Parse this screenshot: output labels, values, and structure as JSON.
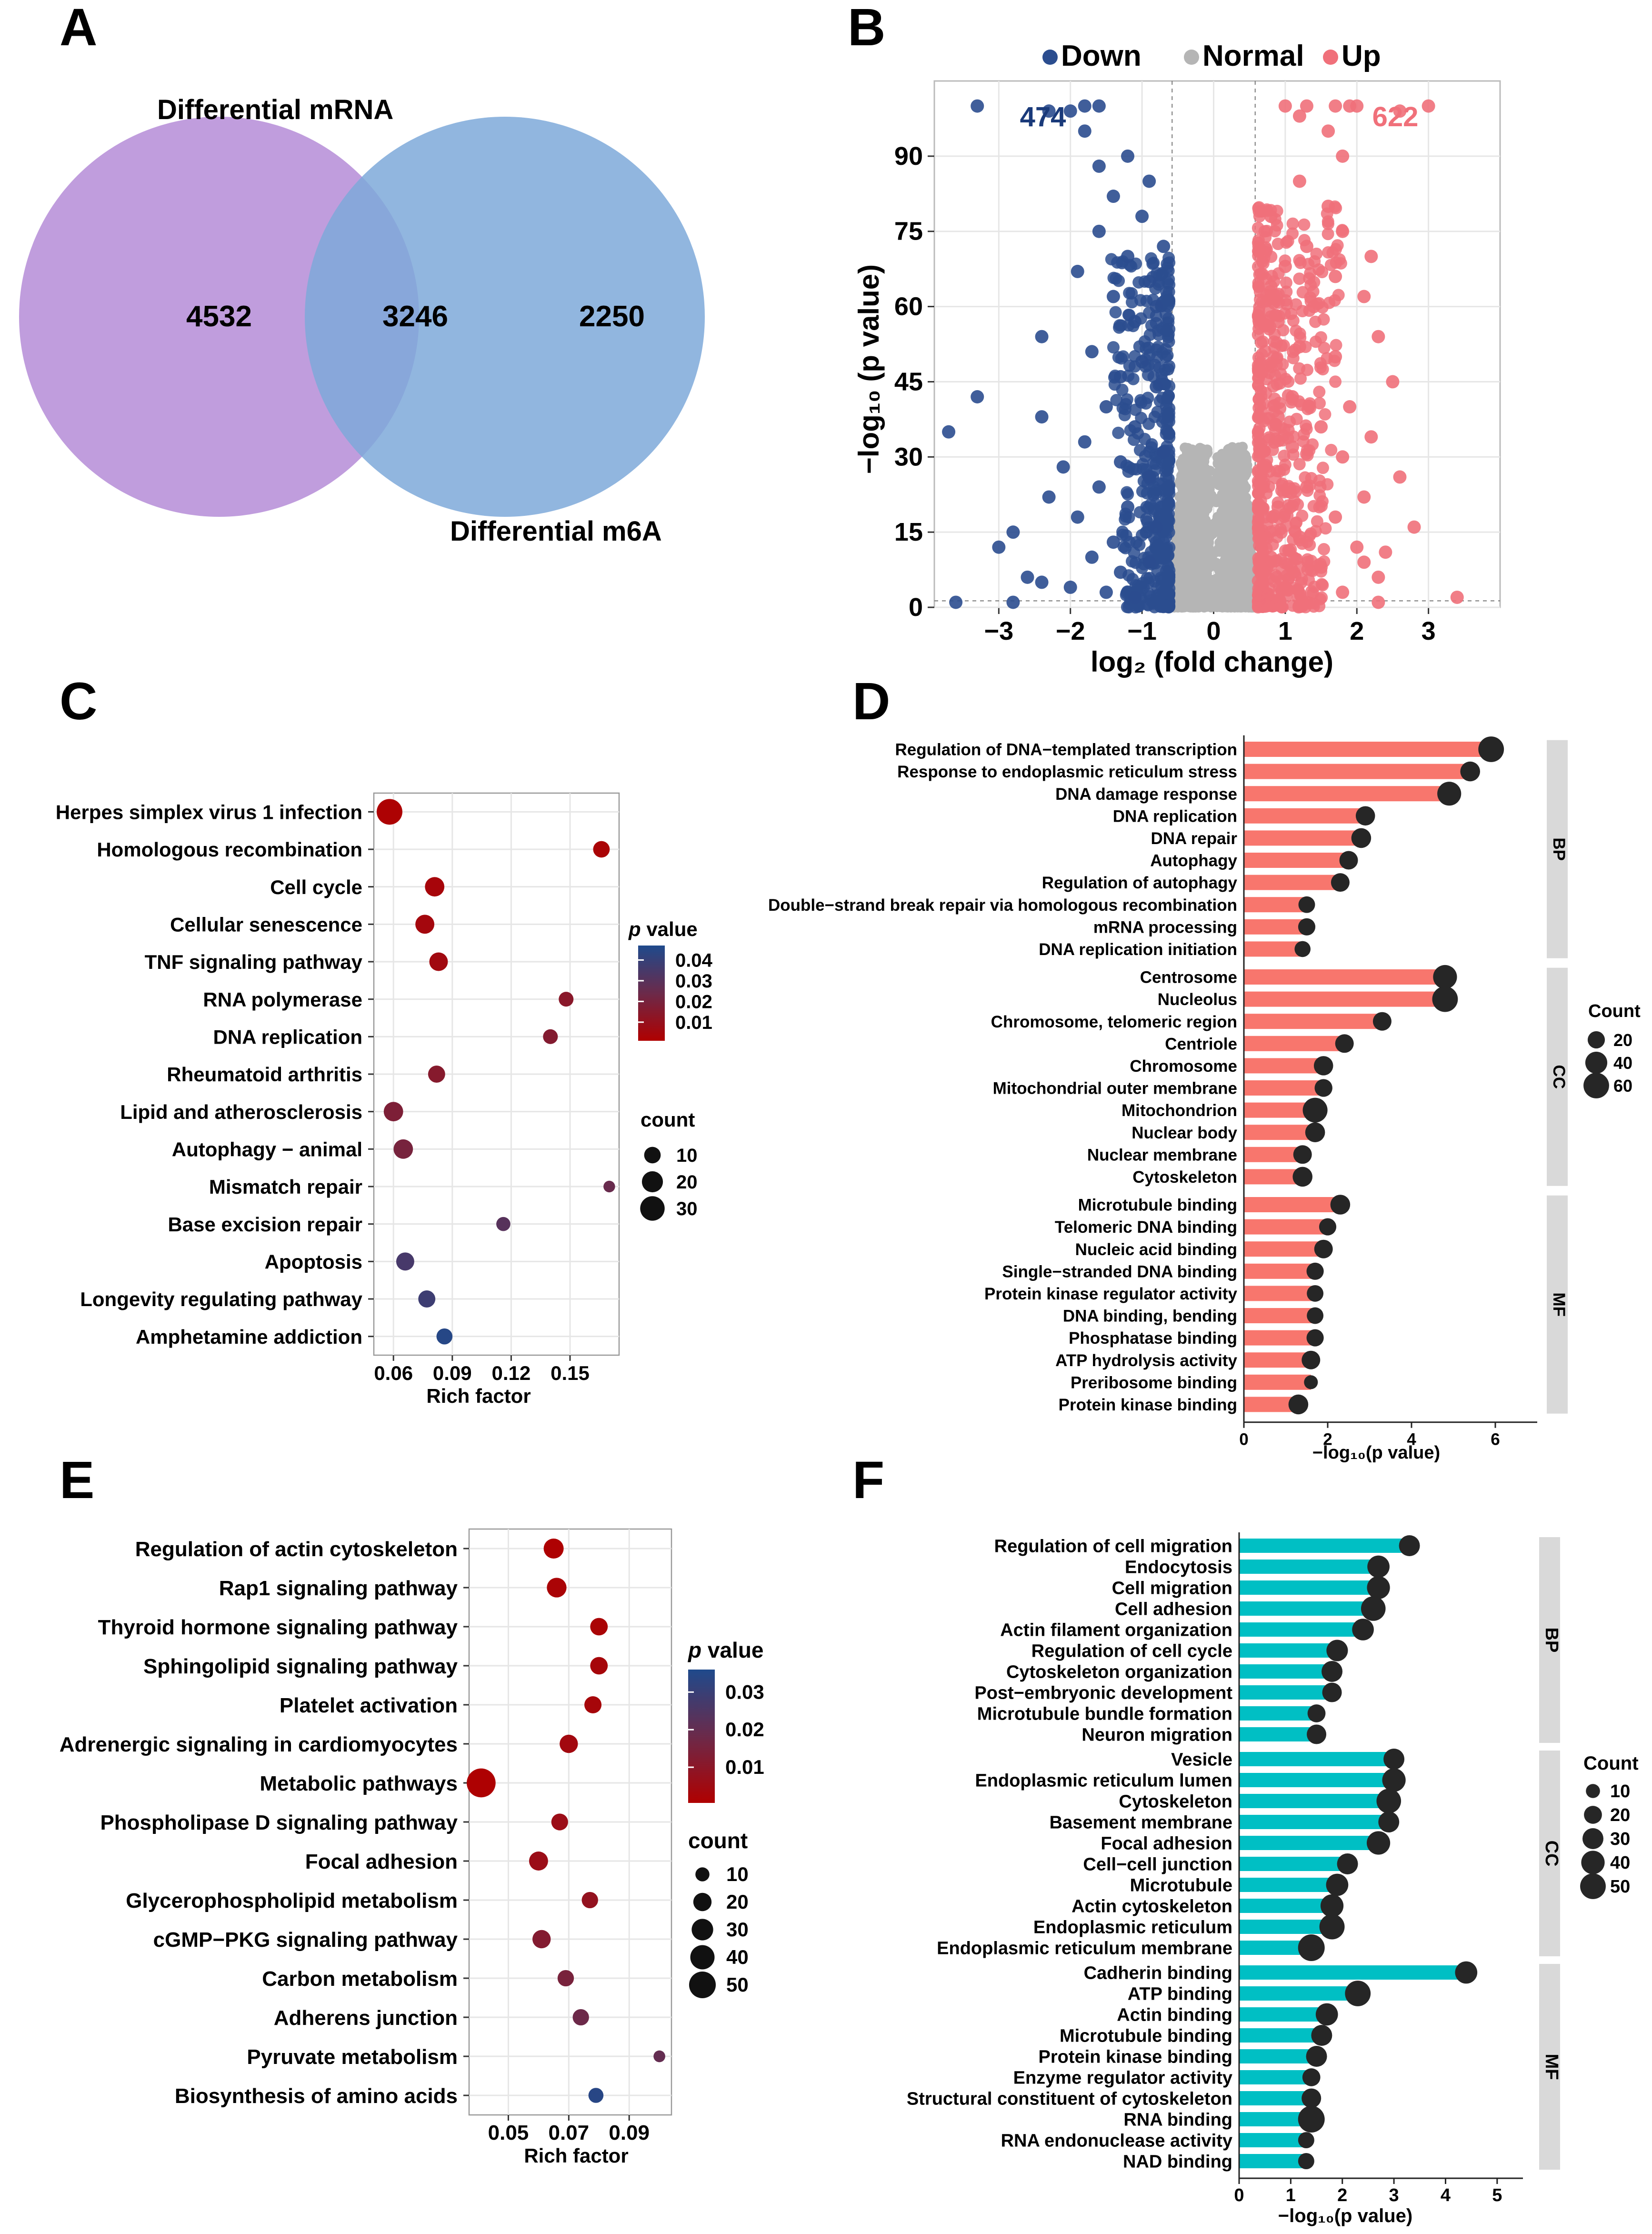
{
  "colors": {
    "venn_left": "#b78fd8",
    "venn_right": "#7ea9d9",
    "venn_overlap": "#8796cf",
    "down": "#2b4d8f",
    "normal": "#b5b5b5",
    "up": "#f0707a",
    "bar_red": "#f8766d",
    "bar_teal": "#00bfc4",
    "dot": "#262626",
    "p_low": "#b00000",
    "p_mid": "#6b2a4a",
    "p_high": "#1f4a8c",
    "strip": "#d9d9d9",
    "grid": "#e6e6e6"
  },
  "chart_data": [
    {
      "panel": "A",
      "type": "venn",
      "sets": [
        "Differential mRNA",
        "Differential m6A"
      ],
      "values": {
        "left_only": "4532",
        "both": "3246",
        "right_only": "2250"
      }
    },
    {
      "panel": "B",
      "type": "scatter",
      "title": "",
      "legend": [
        "Down",
        "Normal",
        "Up"
      ],
      "legend_placement": "top",
      "counts": {
        "down": "474",
        "up": "622"
      },
      "xlabel": "log₂ (fold change)",
      "ylabel": "−log₁₀ (p value)",
      "xlim": [
        -3.9,
        4
      ],
      "ylim": [
        0,
        105
      ],
      "xticks": [
        -3,
        -2,
        -1,
        0,
        1,
        2,
        3
      ],
      "yticks": [
        0,
        15,
        30,
        45,
        60,
        75,
        90
      ],
      "fc_threshold": 0.58,
      "p_threshold": 1.3,
      "highlight_down": [
        [
          -3.3,
          100
        ],
        [
          -2.3,
          99
        ],
        [
          -2,
          99
        ],
        [
          -1.8,
          100
        ],
        [
          -1.6,
          100
        ],
        [
          -1.8,
          95
        ],
        [
          -1.2,
          90
        ],
        [
          -1.6,
          88
        ],
        [
          -0.9,
          85
        ],
        [
          -1.4,
          82
        ],
        [
          -1,
          78
        ],
        [
          -1.6,
          75
        ],
        [
          -0.7,
          72
        ],
        [
          -1.2,
          70
        ],
        [
          -1.9,
          67
        ],
        [
          -0.9,
          65
        ],
        [
          -1.4,
          62
        ],
        [
          -0.8,
          60
        ],
        [
          -1.1,
          57
        ],
        [
          -2.4,
          54
        ],
        [
          -1.7,
          51
        ],
        [
          -1,
          49
        ],
        [
          -1.3,
          46
        ],
        [
          -0.8,
          44
        ],
        [
          -3.3,
          42
        ],
        [
          -1.5,
          40
        ],
        [
          -2.4,
          38
        ],
        [
          -1.1,
          36
        ],
        [
          -3.7,
          35
        ],
        [
          -1.8,
          33
        ],
        [
          -0.7,
          31
        ],
        [
          -1.3,
          29
        ],
        [
          -2.1,
          28
        ],
        [
          -0.9,
          26
        ],
        [
          -1.6,
          24
        ],
        [
          -2.3,
          22
        ],
        [
          -1.2,
          20
        ],
        [
          -1.9,
          18
        ],
        [
          -0.8,
          16
        ],
        [
          -2.8,
          15
        ],
        [
          -1.4,
          13
        ],
        [
          -3,
          12
        ],
        [
          -1.7,
          10
        ],
        [
          -0.9,
          9
        ],
        [
          -2.6,
          6
        ],
        [
          -2.4,
          5
        ],
        [
          -2,
          4
        ],
        [
          -1.5,
          3
        ],
        [
          -3.6,
          1
        ],
        [
          -2.8,
          1
        ],
        [
          -1.1,
          2
        ],
        [
          -1.3,
          7
        ]
      ],
      "highlight_up": [
        [
          1.3,
          100
        ],
        [
          1,
          100
        ],
        [
          1.7,
          100
        ],
        [
          1.9,
          100
        ],
        [
          2,
          100
        ],
        [
          3,
          100
        ],
        [
          2.6,
          99
        ],
        [
          1.2,
          98
        ],
        [
          1.6,
          95
        ],
        [
          1.8,
          90
        ],
        [
          1.2,
          85
        ],
        [
          1.6,
          80
        ],
        [
          0.8,
          78
        ],
        [
          1.8,
          75
        ],
        [
          1.3,
          72
        ],
        [
          2.2,
          70
        ],
        [
          1,
          68
        ],
        [
          1.7,
          66
        ],
        [
          0.8,
          64
        ],
        [
          2.1,
          62
        ],
        [
          1.4,
          60
        ],
        [
          0.9,
          57
        ],
        [
          2.3,
          54
        ],
        [
          1.2,
          52
        ],
        [
          1.7,
          50
        ],
        [
          0.8,
          48
        ],
        [
          2.5,
          45
        ],
        [
          1.1,
          42
        ],
        [
          1.9,
          40
        ],
        [
          0.9,
          38
        ],
        [
          1.5,
          36
        ],
        [
          2.2,
          34
        ],
        [
          1.1,
          32
        ],
        [
          1.8,
          30
        ],
        [
          0.7,
          28
        ],
        [
          2.6,
          26
        ],
        [
          1.3,
          24
        ],
        [
          2.1,
          22
        ],
        [
          0.9,
          20
        ],
        [
          1.7,
          18
        ],
        [
          2.8,
          16
        ],
        [
          1.2,
          14
        ],
        [
          2,
          12
        ],
        [
          0.8,
          10
        ],
        [
          1.5,
          8
        ],
        [
          2.3,
          6
        ],
        [
          1,
          4
        ],
        [
          1.8,
          3
        ],
        [
          3.4,
          2
        ],
        [
          2.3,
          1
        ],
        [
          1.3,
          1
        ],
        [
          2.1,
          9
        ],
        [
          2.4,
          11
        ]
      ]
    },
    {
      "panel": "C",
      "type": "scatter",
      "subtype": "bubble",
      "categories": [
        "Herpes simplex virus 1 infection",
        "Homologous recombination",
        "Cell cycle",
        "Cellular senescence",
        "TNF signaling pathway",
        "RNA polymerase",
        "DNA replication",
        "Rheumatoid arthritis",
        "Lipid and atherosclerosis",
        "Autophagy − animal",
        "Mismatch repair",
        "Base excision repair",
        "Apoptosis",
        "Longevity regulating pathway",
        "Amphetamine addiction"
      ],
      "rich_factor": [
        0.058,
        0.166,
        0.081,
        0.076,
        0.083,
        0.148,
        0.14,
        0.082,
        0.06,
        0.065,
        0.17,
        0.116,
        0.066,
        0.077,
        0.086
      ],
      "p_value": [
        0.002,
        0.003,
        0.004,
        0.005,
        0.006,
        0.014,
        0.016,
        0.015,
        0.018,
        0.02,
        0.025,
        0.03,
        0.035,
        0.038,
        0.045
      ],
      "count": [
        34,
        10,
        16,
        15,
        14,
        7,
        7,
        11,
        16,
        16,
        3,
        6,
        13,
        11,
        9
      ],
      "xlabel": "Rich factor",
      "xticks": [
        "0.06",
        "0.09",
        "0.12",
        "0.15"
      ],
      "xlim": [
        0.05,
        0.175
      ],
      "legend_p": {
        "title_italic": "p",
        "title": " value",
        "ticks": [
          "0.04",
          "0.03",
          "0.02",
          "0.01"
        ],
        "range": [
          0.001,
          0.047
        ]
      },
      "legend_count": {
        "title": "count",
        "labels": [
          "10",
          "20",
          "30"
        ]
      }
    },
    {
      "panel": "D",
      "type": "bar",
      "orientation": "horizontal",
      "facets": [
        {
          "name": "BP",
          "categories": [
            "Regulation of DNA−templated transcription",
            "Response to endoplasmic reticulum stress",
            "DNA damage response",
            "DNA replication",
            "DNA repair",
            "Autophagy",
            "Regulation of autophagy",
            "Double−strand break repair via homologous recombination",
            "mRNA processing",
            "DNA replication initiation"
          ],
          "values": [
            5.9,
            5.4,
            4.9,
            2.9,
            2.8,
            2.5,
            2.3,
            1.5,
            1.5,
            1.4
          ],
          "count": [
            60,
            30,
            50,
            28,
            30,
            25,
            25,
            18,
            20,
            16
          ]
        },
        {
          "name": "CC",
          "categories": [
            "Centrosome",
            "Nucleolus",
            "Chromosome, telomeric region",
            "Centriole",
            "Chromosome",
            "Mitochondrial outer membrane",
            "Mitochondrion",
            "Nuclear body",
            "Nuclear membrane",
            "Cytoskeleton"
          ],
          "values": [
            4.8,
            4.8,
            3.3,
            2.4,
            1.9,
            1.9,
            1.7,
            1.7,
            1.4,
            1.4
          ],
          "count": [
            50,
            60,
            25,
            25,
            28,
            22,
            55,
            30,
            25,
            30
          ]
        },
        {
          "name": "MF",
          "categories": [
            "Microtubule binding",
            "Telomeric DNA binding",
            "Nucleic acid binding",
            "Single−stranded DNA binding",
            "Protein kinase regulator activity",
            "DNA binding, bending",
            "Phosphatase binding",
            "ATP hydrolysis activity",
            "Preribosome binding",
            "Protein kinase binding"
          ],
          "values": [
            2.3,
            2,
            1.9,
            1.7,
            1.7,
            1.7,
            1.7,
            1.6,
            1.6,
            1.3
          ],
          "count": [
            30,
            20,
            25,
            20,
            18,
            18,
            20,
            25,
            10,
            30
          ]
        }
      ],
      "xlabel": "−log₁₀(p value)",
      "xticks": [
        0,
        2,
        4,
        6
      ],
      "xlim": [
        0,
        7
      ],
      "legend_count": {
        "title": "Count",
        "labels": [
          "20",
          "40",
          "60"
        ]
      }
    },
    {
      "panel": "E",
      "type": "scatter",
      "subtype": "bubble",
      "categories": [
        "Regulation of actin cytoskeleton",
        "Rap1 signaling pathway",
        "Thyroid hormone signaling pathway",
        "Sphingolipid signaling pathway",
        "Platelet activation",
        "Adrenergic signaling in cardiomyocytes",
        "Metabolic pathways",
        "Phospholipase D signaling pathway",
        "Focal adhesion",
        "Glycerophospholipid metabolism",
        "cGMP−PKG signaling pathway",
        "Carbon metabolism",
        "Adherens junction",
        "Pyruvate metabolism",
        "Biosynthesis of amino acids"
      ],
      "rich_factor": [
        0.065,
        0.066,
        0.08,
        0.08,
        0.078,
        0.07,
        0.041,
        0.067,
        0.06,
        0.077,
        0.061,
        0.069,
        0.074,
        0.1,
        0.079
      ],
      "p_value": [
        0.001,
        0.002,
        0.002,
        0.003,
        0.003,
        0.004,
        0.001,
        0.006,
        0.006,
        0.008,
        0.012,
        0.015,
        0.018,
        0.02,
        0.034
      ],
      "count": [
        25,
        24,
        18,
        18,
        17,
        20,
        60,
        16,
        22,
        15,
        20,
        15,
        15,
        6,
        12
      ],
      "xlabel": "Rich factor",
      "xticks": [
        "0.05",
        "0.07",
        "0.09"
      ],
      "xlim": [
        0.037,
        0.104
      ],
      "legend_p": {
        "title_italic": "p",
        "title": " value",
        "ticks": [
          "0.03",
          "0.02",
          "0.01"
        ],
        "range": [
          0.0005,
          0.036
        ]
      },
      "legend_count": {
        "title": "count",
        "labels": [
          "10",
          "20",
          "30",
          "40",
          "50"
        ]
      }
    },
    {
      "panel": "F",
      "type": "bar",
      "orientation": "horizontal",
      "facets": [
        {
          "name": "BP",
          "categories": [
            "Regulation of cell migration",
            "Endocytosis",
            "Cell migration",
            "Cell adhesion",
            "Actin filament organization",
            "Regulation of cell cycle",
            "Cytoskeleton organization",
            "Post−embryonic development",
            "Microtubule bundle formation",
            "Neuron migration"
          ],
          "values": [
            3.3,
            2.7,
            2.7,
            2.6,
            2.4,
            1.9,
            1.8,
            1.8,
            1.5,
            1.5
          ],
          "count": [
            30,
            35,
            38,
            45,
            33,
            32,
            30,
            25,
            20,
            25
          ]
        },
        {
          "name": "CC",
          "categories": [
            "Vesicle",
            "Endoplasmic reticulum lumen",
            "Cytoskeleton",
            "Basement membrane",
            "Focal adhesion",
            "Cell−cell junction",
            "Microtubule",
            "Actin cytoskeleton",
            "Endoplasmic reticulum",
            "Endoplasmic reticulum membrane"
          ],
          "values": [
            3.0,
            3.0,
            2.9,
            2.9,
            2.7,
            2.1,
            1.9,
            1.8,
            1.8,
            1.4
          ],
          "count": [
            30,
            40,
            45,
            30,
            40,
            30,
            35,
            38,
            48,
            55
          ]
        },
        {
          "name": "MF",
          "categories": [
            "Cadherin binding",
            "ATP binding",
            "Actin binding",
            "Microtubule binding",
            "Protein kinase binding",
            "Enzyme regulator activity",
            "Structural constituent of cytoskeleton",
            "RNA binding",
            "RNA endonuclease activity",
            "NAD binding"
          ],
          "values": [
            4.4,
            2.3,
            1.7,
            1.6,
            1.5,
            1.4,
            1.4,
            1.4,
            1.3,
            1.3
          ],
          "count": [
            35,
            50,
            35,
            30,
            30,
            20,
            25,
            55,
            15,
            15
          ]
        }
      ],
      "xlabel": "−log₁₀(p value)",
      "xticks": [
        0,
        1,
        2,
        3,
        4,
        5
      ],
      "xlim": [
        0,
        5.5
      ],
      "legend_count": {
        "title": "Count",
        "labels": [
          "10",
          "20",
          "30",
          "40",
          "50"
        ]
      }
    }
  ]
}
